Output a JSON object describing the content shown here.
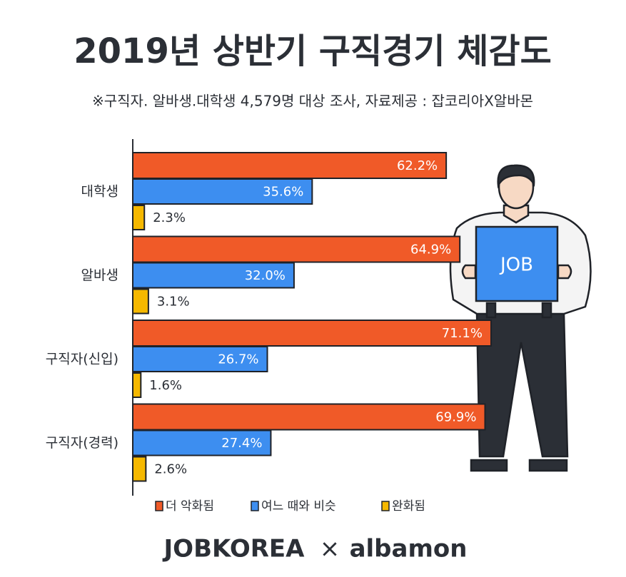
{
  "chart_data": {
    "type": "hbar",
    "title": "2019년 상반기 구직경기 체감도",
    "subtitle": "※구직자. 알바생.대학생 4,579명 대상 조사, 자료제공 : 잡코리아X알바몬",
    "categories": [
      "대학생",
      "알바생",
      "구직자(신입)",
      "구직자(경력)"
    ],
    "series": [
      {
        "name": "더 악화됨",
        "color": "#f05a28",
        "values": [
          62.2,
          64.9,
          71.1,
          69.9
        ],
        "value_labels": [
          "62.2%",
          "64.9%",
          "71.1%",
          "69.9%"
        ]
      },
      {
        "name": "여느 때와 비슷",
        "color": "#3d8ef0",
        "values": [
          35.6,
          32.0,
          26.7,
          27.4
        ],
        "value_labels": [
          "35.6%",
          "32.0%",
          "26.7%",
          "27.4%"
        ]
      },
      {
        "name": "완화됨",
        "color": "#f5b800",
        "values": [
          2.3,
          3.1,
          1.6,
          2.6
        ],
        "value_labels": [
          "2.3%",
          "3.1%",
          "1.6%",
          "2.6%"
        ]
      }
    ],
    "sign_text": "JOB",
    "footer": {
      "left": "JOBKOREA",
      "separator": "×",
      "right": "albamon"
    }
  }
}
